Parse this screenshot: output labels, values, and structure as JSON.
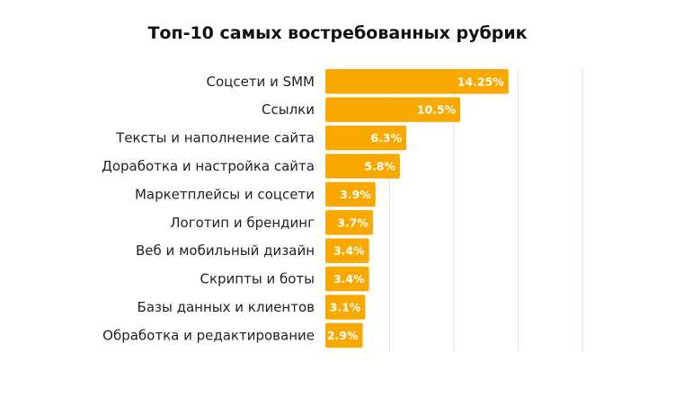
{
  "chart_data": {
    "type": "bar",
    "orientation": "horizontal",
    "title": "Топ-10 самых востребованных рубрик",
    "categories": [
      "Соцсети и SMM",
      "Ссылки",
      "Тексты и наполнение сайта",
      "Доработка и настройка сайта",
      "Маркетплейсы и соцсети",
      "Логотип и брендинг",
      "Веб и мобильный дизайн",
      "Скрипты и боты",
      "Базы данных и клиентов",
      "Обработка и редактирование"
    ],
    "values": [
      14.25,
      10.5,
      6.3,
      5.8,
      3.9,
      3.7,
      3.4,
      3.4,
      3.1,
      2.9
    ],
    "data_labels": [
      "14.25%",
      "10.5%",
      "6.3%",
      "5.8%",
      "3.9%",
      "3.7%",
      "3.4%",
      "3.4%",
      "3.1%",
      "2.9%"
    ],
    "xlim": [
      0,
      20
    ],
    "gridlines_at": [
      5,
      10,
      15,
      20
    ],
    "grid": true,
    "bar_color": "#F9A800",
    "xlabel": "",
    "ylabel": ""
  }
}
